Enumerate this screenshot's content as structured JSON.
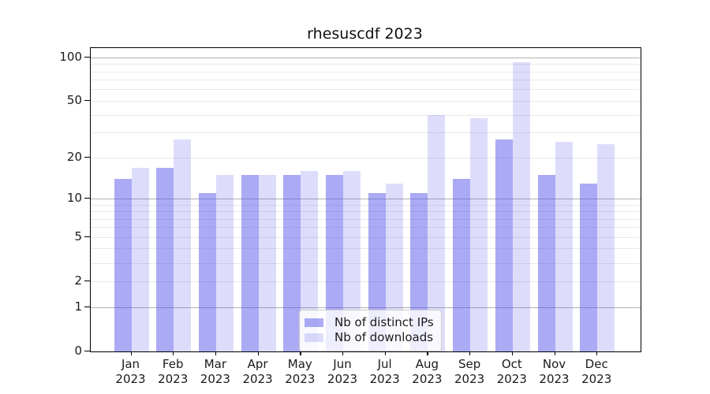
{
  "figure": {
    "title": "rhesuscdf 2023"
  },
  "chart_data": {
    "type": "bar",
    "title": "rhesuscdf 2023",
    "categories": [
      "Jan",
      "Feb",
      "Mar",
      "Apr",
      "May",
      "Jun",
      "Jul",
      "Aug",
      "Sep",
      "Oct",
      "Nov",
      "Dec"
    ],
    "year_label": "2023",
    "series": [
      {
        "name": "Nb of distinct IPs",
        "color_hex": "#aaaaf5",
        "fill": "rgba(85,85,235,0.5)",
        "values": [
          14,
          17,
          11,
          15,
          15,
          15,
          11,
          11,
          14,
          27,
          15,
          13
        ]
      },
      {
        "name": "Nb of downloads",
        "color_hex": "#ddddfb",
        "fill": "rgba(85,85,235,0.2)",
        "values": [
          17,
          27,
          15,
          15,
          16,
          16,
          13,
          40,
          38,
          93,
          26,
          25
        ]
      }
    ],
    "yscale": "log1p",
    "ylim": [
      0,
      116
    ],
    "yticks_labeled": [
      100,
      50,
      20,
      10,
      5,
      2,
      1,
      0
    ],
    "yticks_minor_grid": [
      90,
      80,
      70,
      60,
      50,
      40,
      30,
      20,
      9,
      8,
      7,
      6,
      5,
      4,
      3,
      2
    ],
    "yticks_major_grid": [
      100,
      10,
      1
    ],
    "grid": "on",
    "legend_position": "lower center",
    "colors": {
      "major_grid": "#b0b0b0",
      "minor_grid": "#e9e9e9",
      "spine": "#000000"
    }
  }
}
